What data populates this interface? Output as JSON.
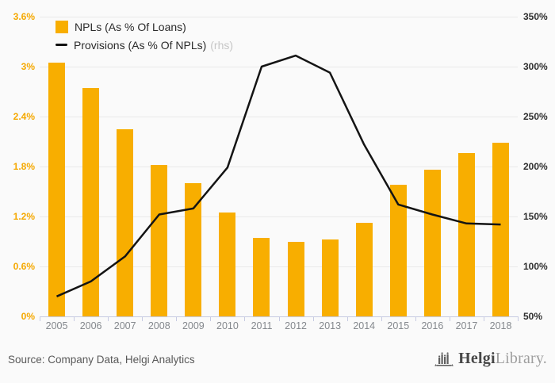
{
  "chart_data": {
    "type": "bar+line combo",
    "categories": [
      "2005",
      "2006",
      "2007",
      "2008",
      "2009",
      "2010",
      "2011",
      "2012",
      "2013",
      "2014",
      "2015",
      "2016",
      "2017",
      "2018"
    ],
    "series": [
      {
        "name": "NPLs (As % Of Loans)",
        "type": "bar",
        "axis": "left",
        "color": "#f8ae00",
        "values": [
          3.05,
          2.74,
          2.25,
          1.82,
          1.6,
          1.25,
          0.94,
          0.9,
          0.92,
          1.12,
          1.58,
          1.76,
          1.96,
          2.09
        ]
      },
      {
        "name": "Provisions (As % Of NPLs)",
        "type": "line",
        "axis": "right",
        "color": "#141414",
        "values": [
          70,
          85,
          110,
          152,
          158,
          199,
          300,
          311,
          294,
          222,
          162,
          152,
          143,
          142
        ]
      }
    ],
    "left_axis": {
      "ticks": [
        "3.6%",
        "3%",
        "2.4%",
        "1.8%",
        "1.2%",
        "0.6%",
        "0%"
      ],
      "min": 0,
      "max": 3.6,
      "color": "#f5a800"
    },
    "right_axis": {
      "ticks": [
        "350%",
        "300%",
        "250%",
        "200%",
        "150%",
        "100%",
        "50%"
      ],
      "min": 50,
      "max": 350,
      "color": "#2f2f2f"
    },
    "legend": [
      {
        "label": "NPLs (As % Of Loans)",
        "suffix": ""
      },
      {
        "label": "Provisions (As % Of NPLs)",
        "suffix": "(rhs)"
      }
    ],
    "grid": "horizontal",
    "legend_position": "top-left-inside"
  },
  "footer": {
    "source_text": "Source: Company Data, Helgi Analytics",
    "logo": {
      "bold_part": "Helgi",
      "light_part": "Library."
    }
  }
}
